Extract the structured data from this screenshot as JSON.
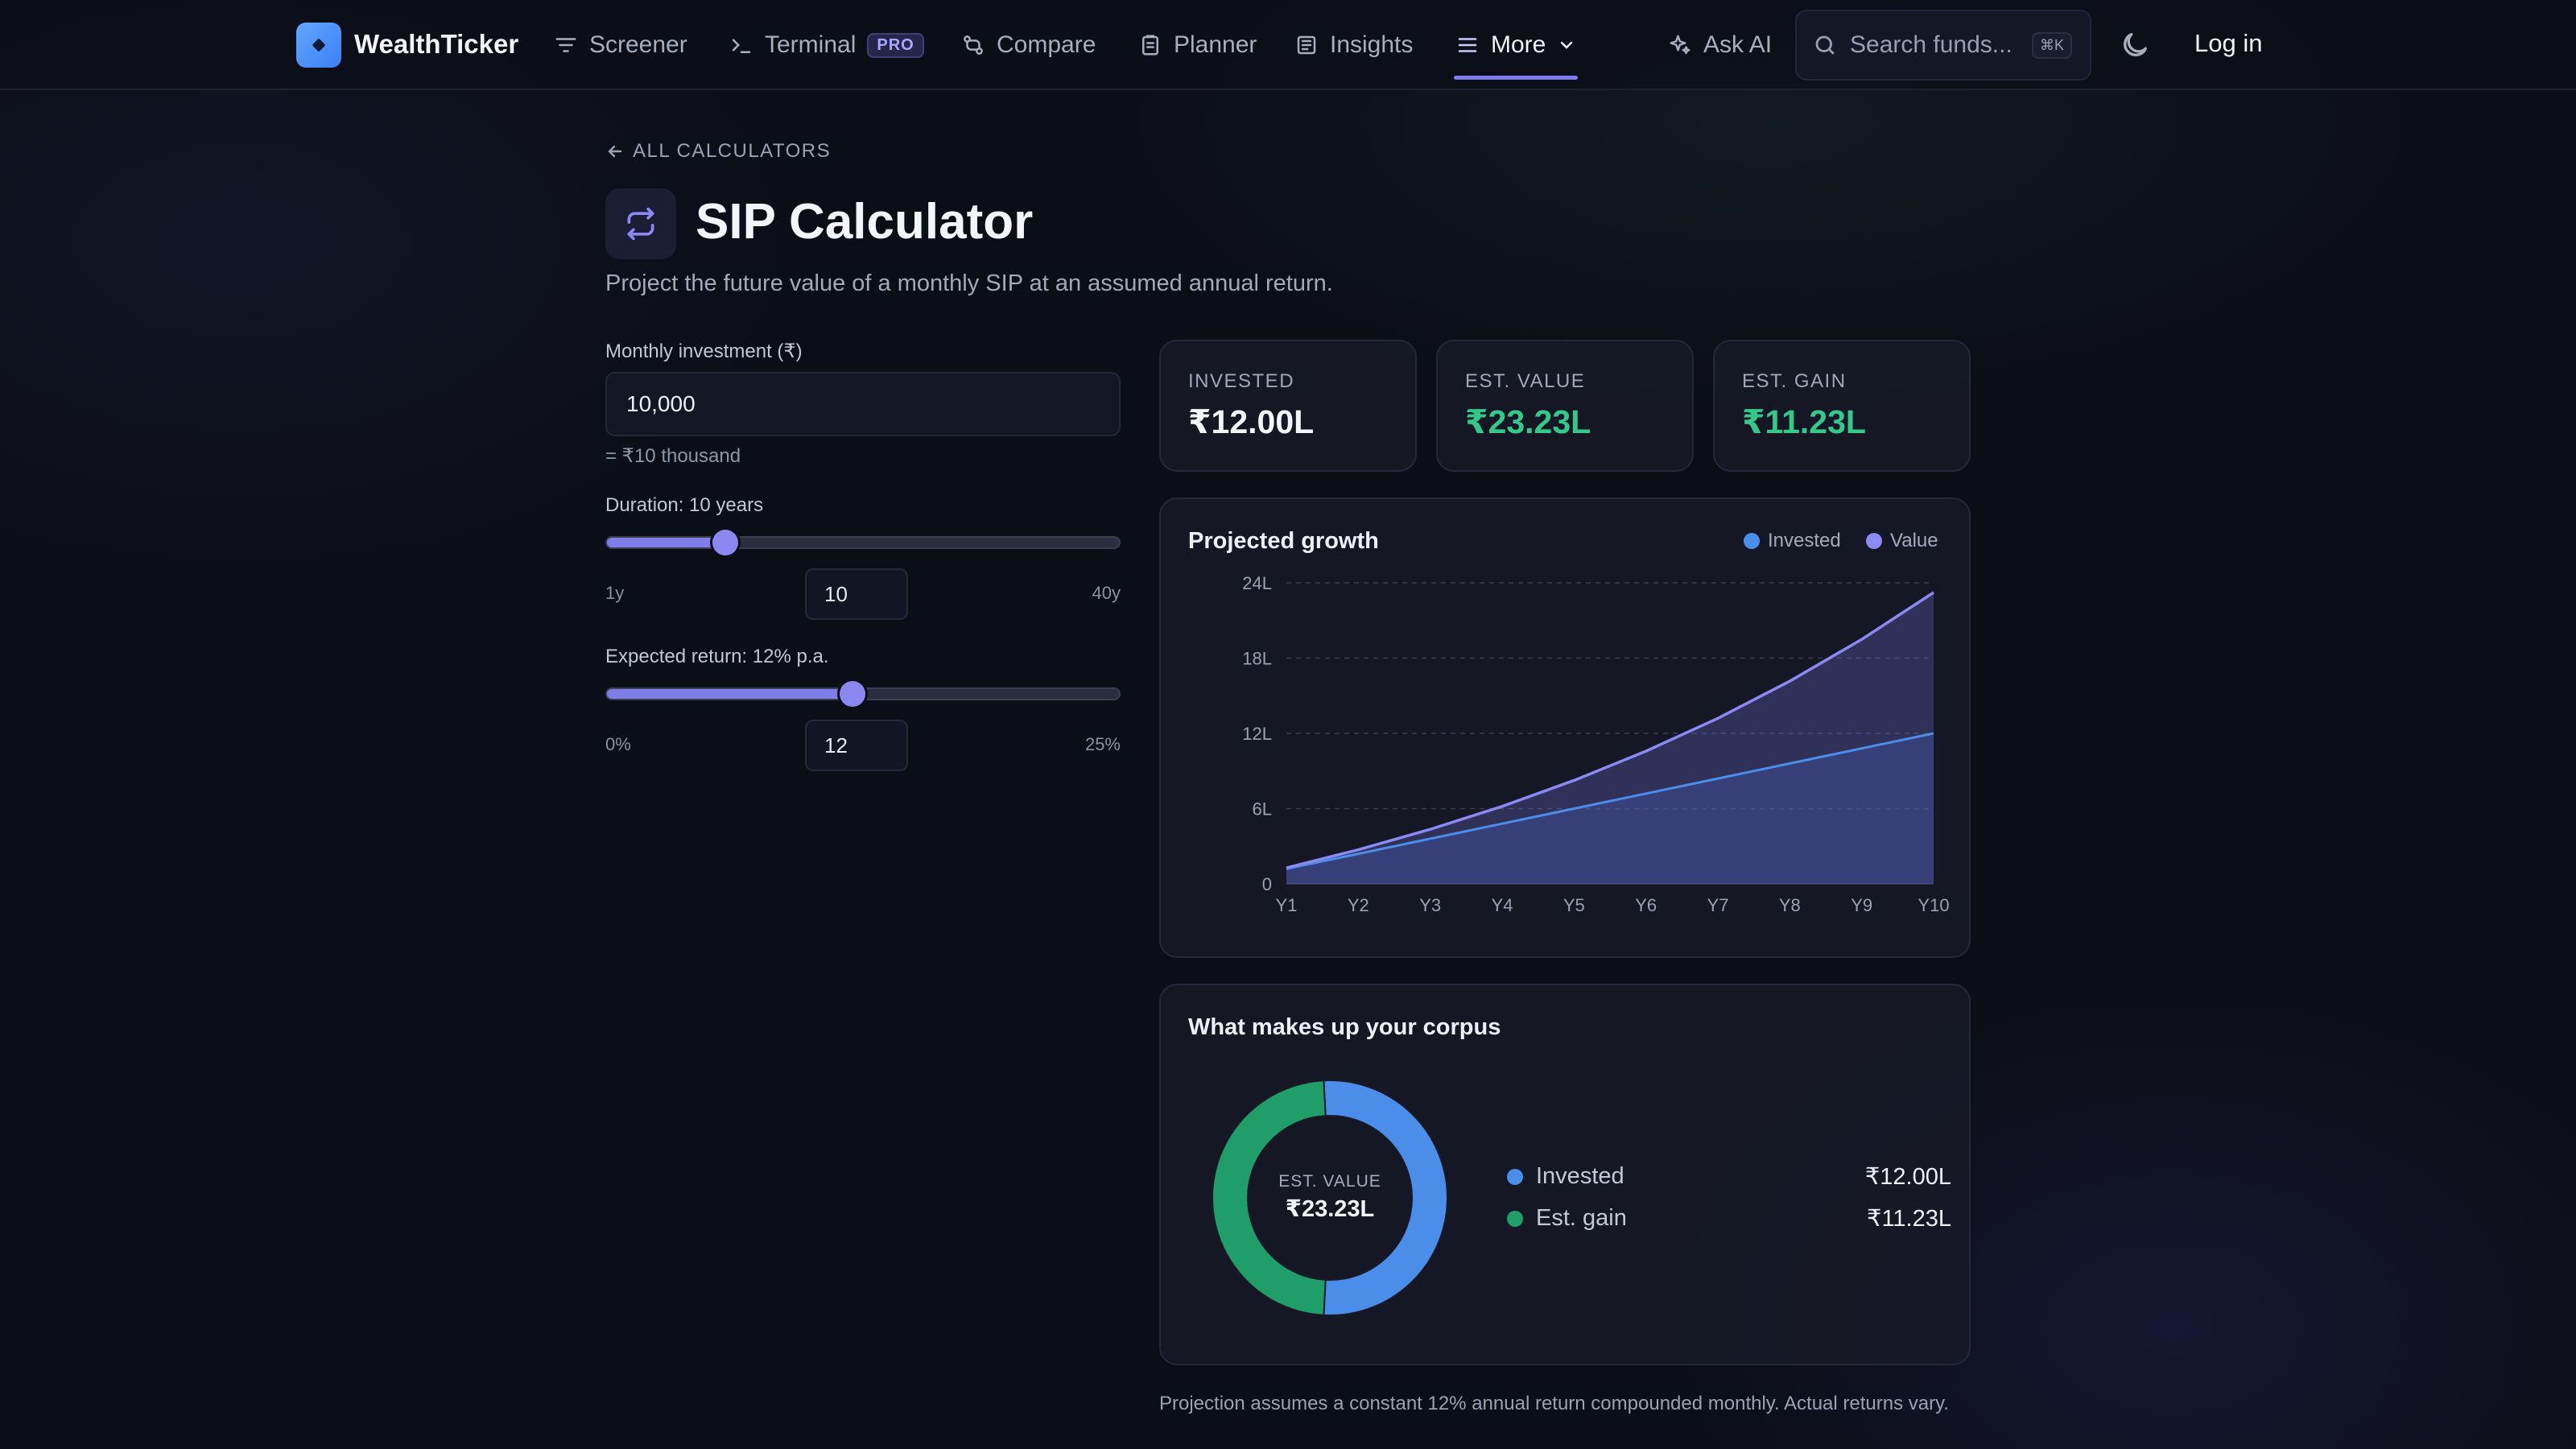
{
  "nav": {
    "brand": "WealthTicker",
    "items": [
      {
        "label": "Screener",
        "icon": "filter-icon"
      },
      {
        "label": "Terminal",
        "icon": "terminal-icon",
        "badge": "PRO"
      },
      {
        "label": "Compare",
        "icon": "compare-icon"
      },
      {
        "label": "Planner",
        "icon": "clipboard-icon"
      },
      {
        "label": "Insights",
        "icon": "newspaper-icon"
      },
      {
        "label": "More",
        "icon": "menu-icon"
      }
    ],
    "ask_ai": "Ask AI",
    "search_placeholder": "Search funds...",
    "search_shortcut": "⌘K",
    "login": "Log in"
  },
  "header": {
    "back_link": "ALL CALCULATORS",
    "title": "SIP Calculator",
    "subtitle": "Project the future value of a monthly SIP at an assumed annual return."
  },
  "inputs": {
    "monthly_label": "Monthly investment (₹)",
    "monthly_value": "10,000",
    "monthly_hint": "= ₹10 thousand",
    "duration_label": "Duration: 10 years",
    "duration_min_label": "1y",
    "duration_max_label": "40y",
    "duration_value": "10",
    "duration": {
      "min": 1,
      "max": 40,
      "value": 10
    },
    "return_label": "Expected return: 12% p.a.",
    "return_min_label": "0%",
    "return_max_label": "25%",
    "return_value": "12",
    "return": {
      "min": 0,
      "max": 25,
      "value": 12
    }
  },
  "stats": {
    "invested_label": "INVESTED",
    "invested_value": "₹12.00L",
    "est_value_label": "EST. VALUE",
    "est_value_value": "₹23.23L",
    "est_gain_label": "EST. GAIN",
    "est_gain_value": "₹11.23L"
  },
  "colors": {
    "invested": "#4a8eea",
    "value": "#8b89f2",
    "gain": "#1f9e6a",
    "positive_text": "#34c98a"
  },
  "growth_chart": {
    "title": "Projected growth",
    "legend_invested": "Invested",
    "legend_value": "Value"
  },
  "corpus": {
    "title": "What makes up your corpus",
    "center_label": "EST. VALUE",
    "center_value": "₹23.23L",
    "rows": [
      {
        "label": "Invested",
        "amount": "₹12.00L"
      },
      {
        "label": "Est. gain",
        "amount": "₹11.23L"
      }
    ]
  },
  "footnote": "Projection assumes a constant 12% annual return compounded monthly. Actual returns vary.",
  "chart_data": [
    {
      "type": "area",
      "title": "Projected growth",
      "categories": [
        "Y1",
        "Y2",
        "Y3",
        "Y4",
        "Y5",
        "Y6",
        "Y7",
        "Y8",
        "Y9",
        "Y10"
      ],
      "y_ticks": [
        "0",
        "6L",
        "12L",
        "18L",
        "24L"
      ],
      "ylim": [
        0,
        24
      ],
      "y_unit": "L",
      "grid": true,
      "legend": "top-right",
      "series": [
        {
          "name": "Invested",
          "values": [
            1.2,
            2.4,
            3.6,
            4.8,
            6.0,
            7.2,
            8.4,
            9.6,
            10.8,
            12.0
          ]
        },
        {
          "name": "Value",
          "values": [
            1.28,
            2.72,
            4.35,
            6.18,
            8.25,
            10.58,
            13.2,
            16.16,
            19.49,
            23.23
          ]
        }
      ]
    },
    {
      "type": "pie",
      "title": "What makes up your corpus",
      "labels": [
        "Invested",
        "Est. gain"
      ],
      "values": [
        12.0,
        11.23
      ]
    }
  ]
}
